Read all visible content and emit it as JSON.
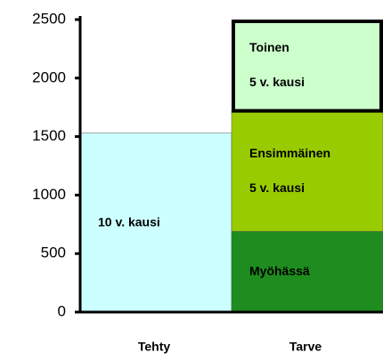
{
  "chart_data": {
    "type": "stacked_bar",
    "categories": [
      "Tehty",
      "Tarve"
    ],
    "series": [
      {
        "name": "10 v. kausi",
        "color": "#ccffff",
        "values": [
          1530,
          null
        ]
      },
      {
        "name": "Myöhässä",
        "color": "#1e8c1e",
        "values": [
          null,
          690
        ]
      },
      {
        "name": "Ensimmäinen\n5 v. kausi",
        "color": "#99cc00",
        "values": [
          null,
          1030
        ]
      },
      {
        "name": "Toinen\n5 v. kausi",
        "color": "#ccffcc",
        "values": [
          null,
          780
        ],
        "border": true
      }
    ],
    "ylim": [
      0,
      2500
    ],
    "yticks": [
      0,
      500,
      1000,
      1500,
      2000,
      2500
    ]
  }
}
